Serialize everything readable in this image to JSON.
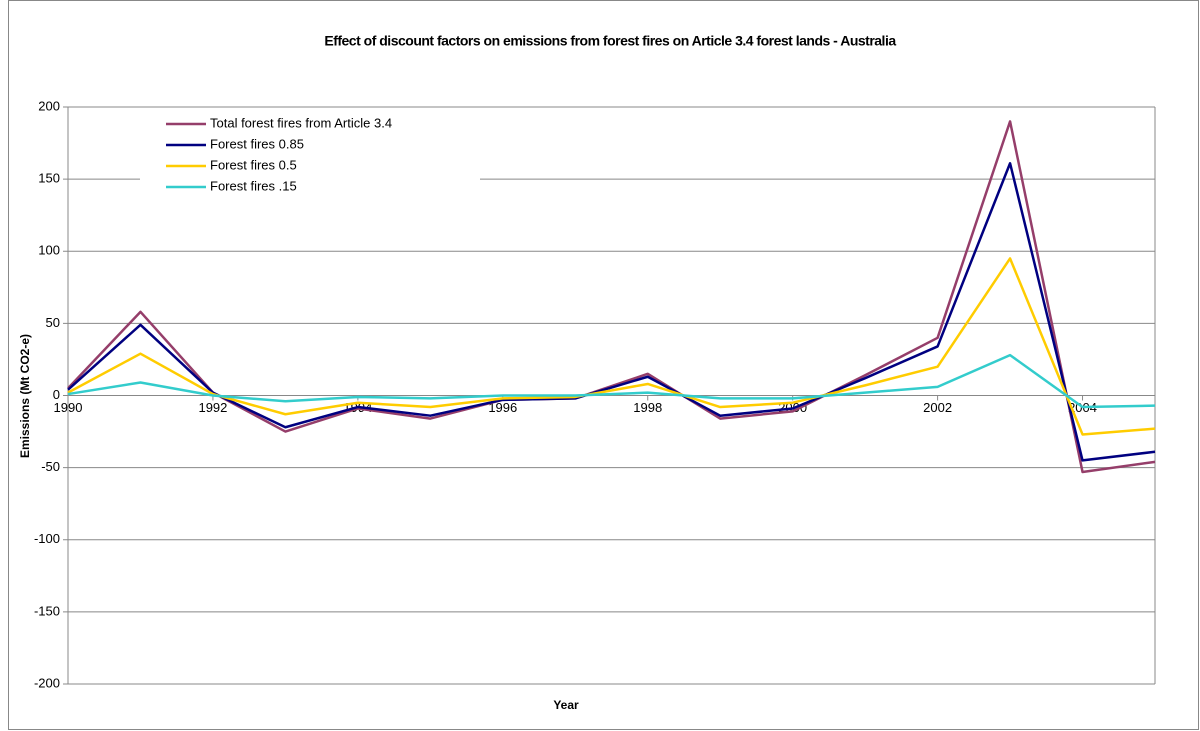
{
  "chart_data": {
    "type": "line",
    "title": "Effect of discount factors on emissions from forest fires on Article 3.4 forest lands - Australia",
    "x_label": "Year",
    "y_label": "Emissions (Mt CO2-e)",
    "x": [
      1990,
      1991,
      1992,
      1993,
      1994,
      1995,
      1996,
      1997,
      1998,
      1999,
      2000,
      2001,
      2002,
      2003,
      2004,
      2005
    ],
    "series": [
      {
        "name": "Total forest fires from Article 3.4",
        "color": "#953E6A",
        "values": [
          5,
          58,
          2,
          -25,
          -9,
          -16,
          -3,
          -2,
          15,
          -16,
          -11,
          14,
          40,
          190,
          -53,
          -46
        ]
      },
      {
        "name": "Forest fires 0.85",
        "color": "#000080",
        "values": [
          4,
          49,
          2,
          -22,
          -8,
          -14,
          -3,
          -2,
          13,
          -14,
          -9,
          12,
          34,
          161,
          -45,
          -39
        ]
      },
      {
        "name": "Forest fires 0.5",
        "color": "#FFCC00",
        "values": [
          2,
          29,
          1,
          -13,
          -5,
          -8,
          -2,
          -1,
          8,
          -8,
          -5,
          7,
          20,
          95,
          -27,
          -23
        ]
      },
      {
        "name": "Forest fires .15",
        "color": "#33CCCC",
        "values": [
          1,
          9,
          0,
          -4,
          -1,
          -2,
          0,
          0,
          2,
          -2,
          -2,
          2,
          6,
          28,
          -8,
          -7
        ]
      }
    ],
    "xlim": [
      1990,
      2005
    ],
    "xticks": [
      1990,
      1992,
      1994,
      1996,
      1998,
      2000,
      2002,
      2004
    ],
    "ylim": [
      -200,
      200
    ],
    "yticks": [
      -200,
      -150,
      -100,
      -50,
      0,
      50,
      100,
      150,
      200
    ],
    "grid": true,
    "legend": "upper-left"
  }
}
